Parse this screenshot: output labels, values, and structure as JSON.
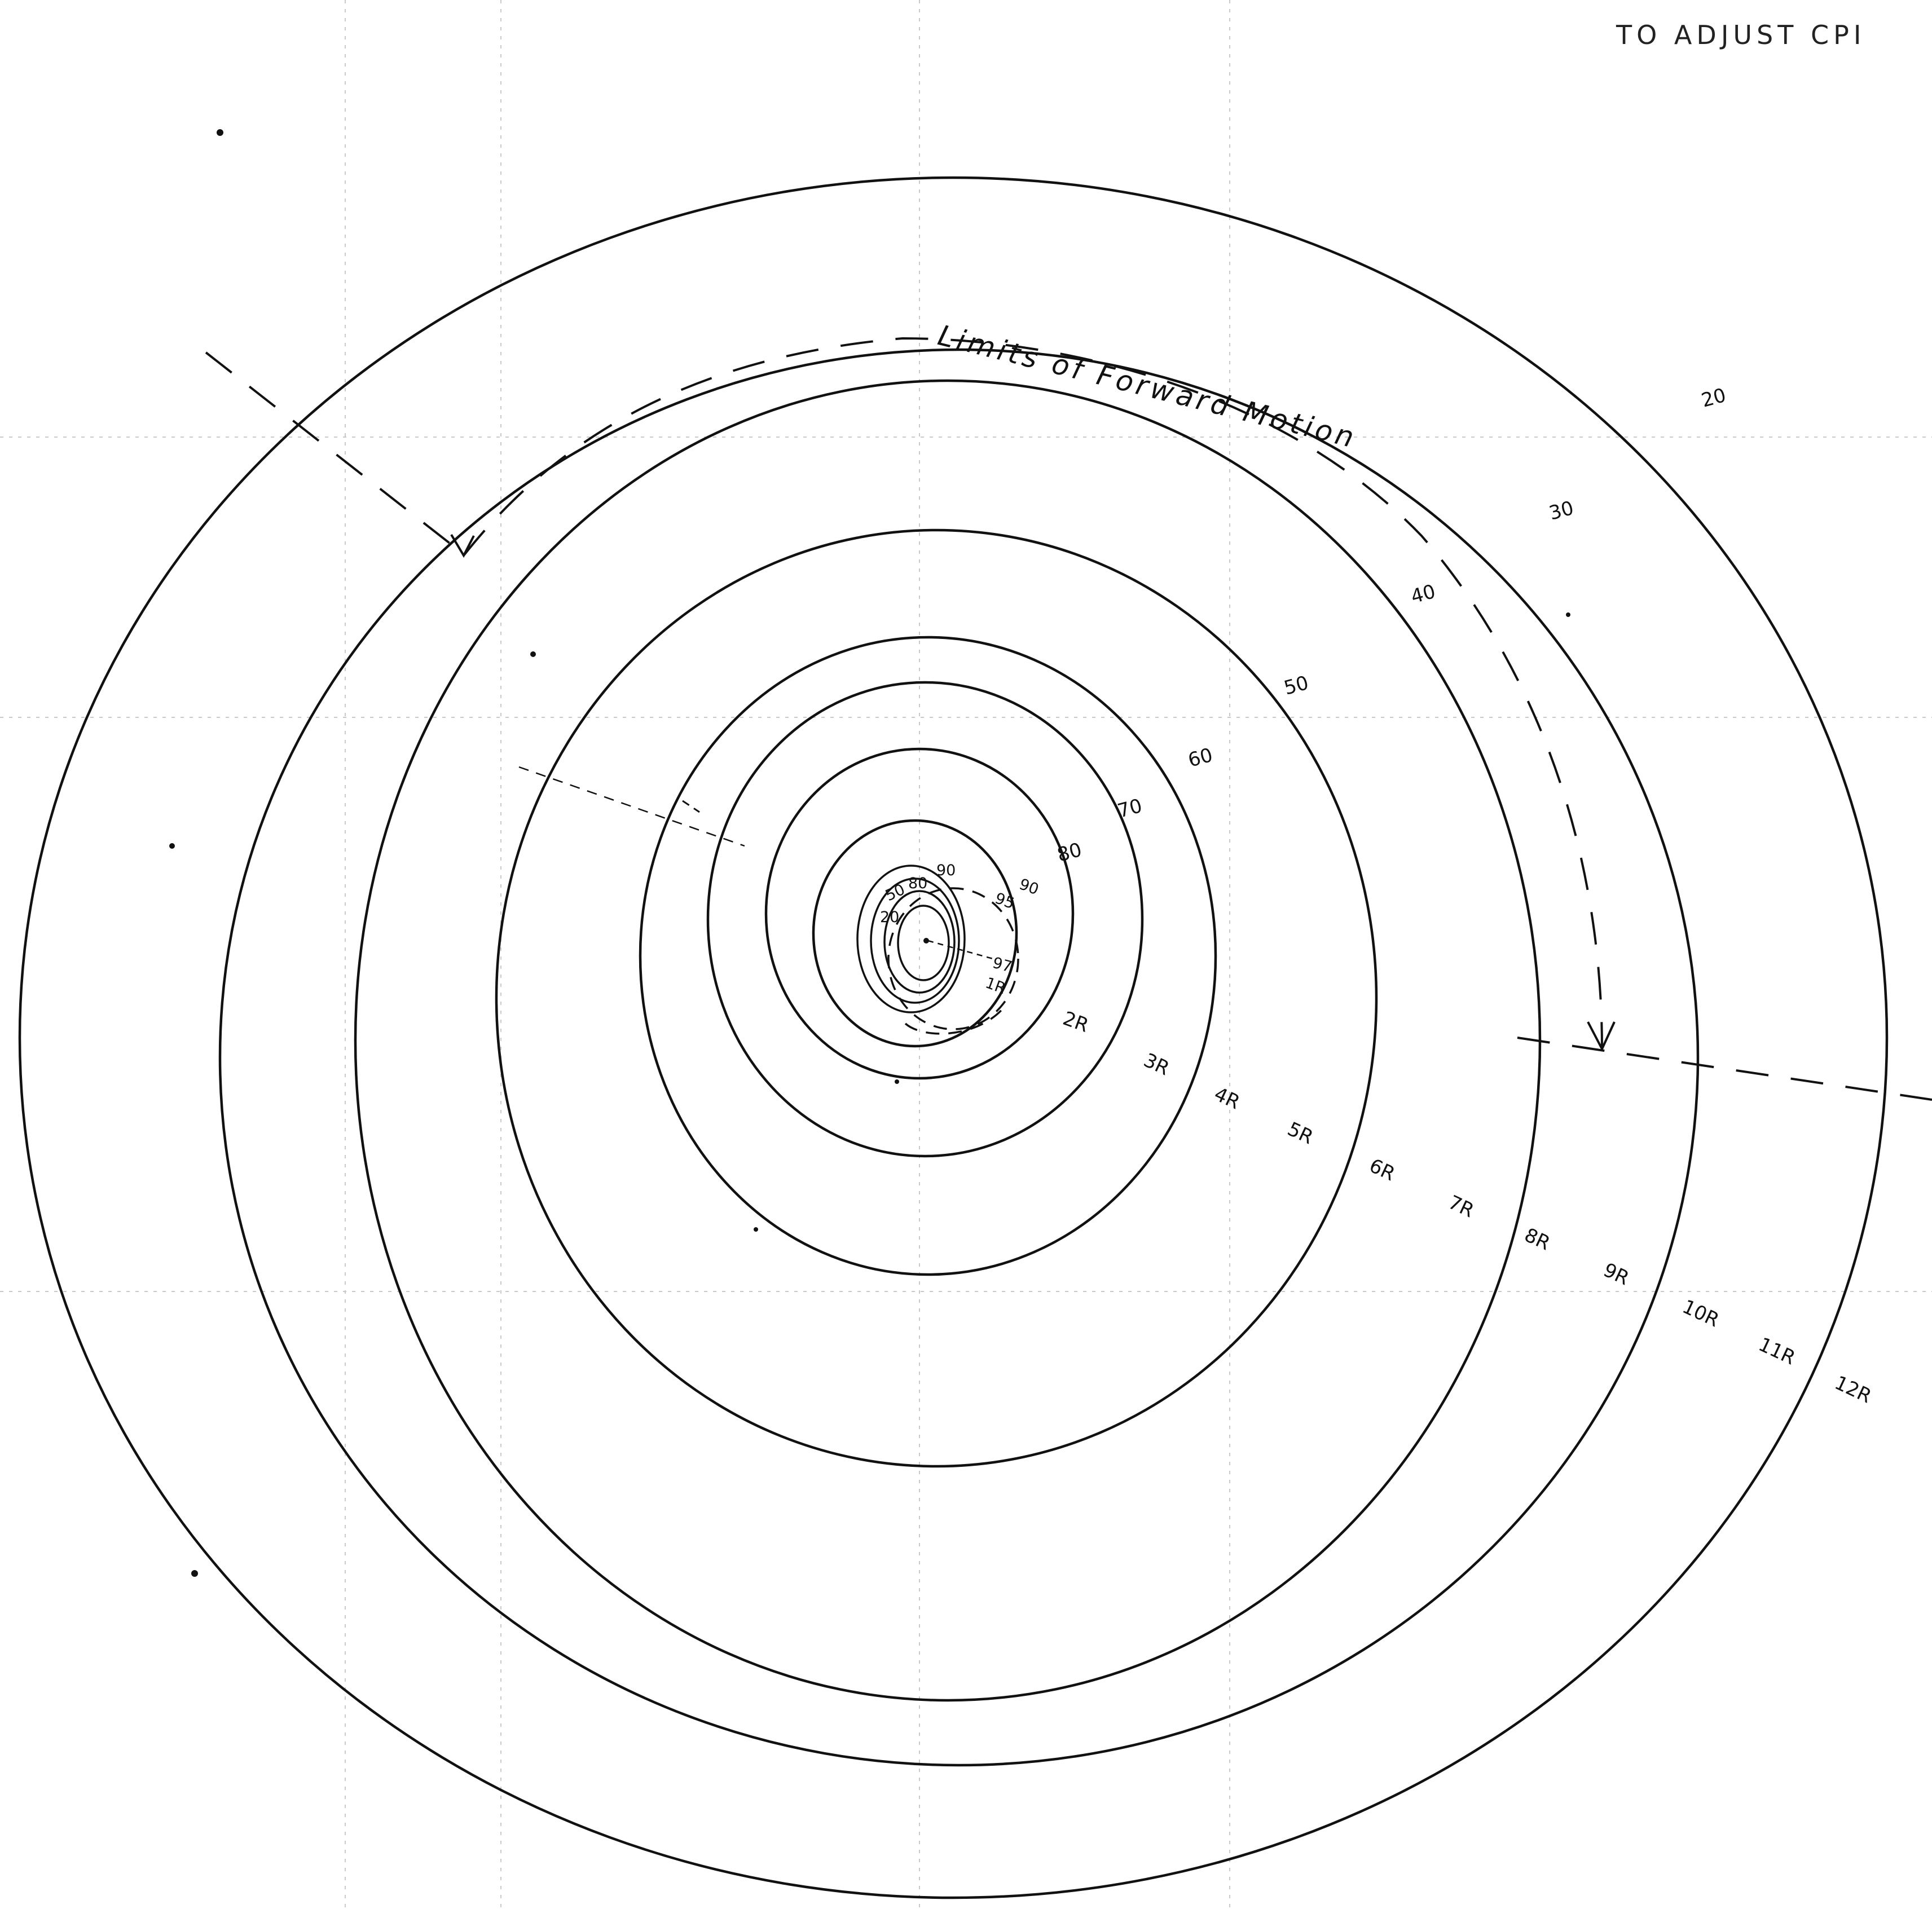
{
  "header_text": "TO ADJUST CPI",
  "curve_label": "Limits of Forward Motion",
  "percent_labels": [
    "20",
    "30",
    "40",
    "50",
    "60",
    "70",
    "80",
    "90",
    "95",
    "97"
  ],
  "inner_labels": [
    "90",
    "80",
    "50",
    "20"
  ],
  "radius_labels": [
    "1R",
    "2R",
    "3R",
    "4R",
    "5R",
    "6R",
    "7R",
    "8R",
    "9R",
    "10R",
    "11R",
    "12R"
  ]
}
